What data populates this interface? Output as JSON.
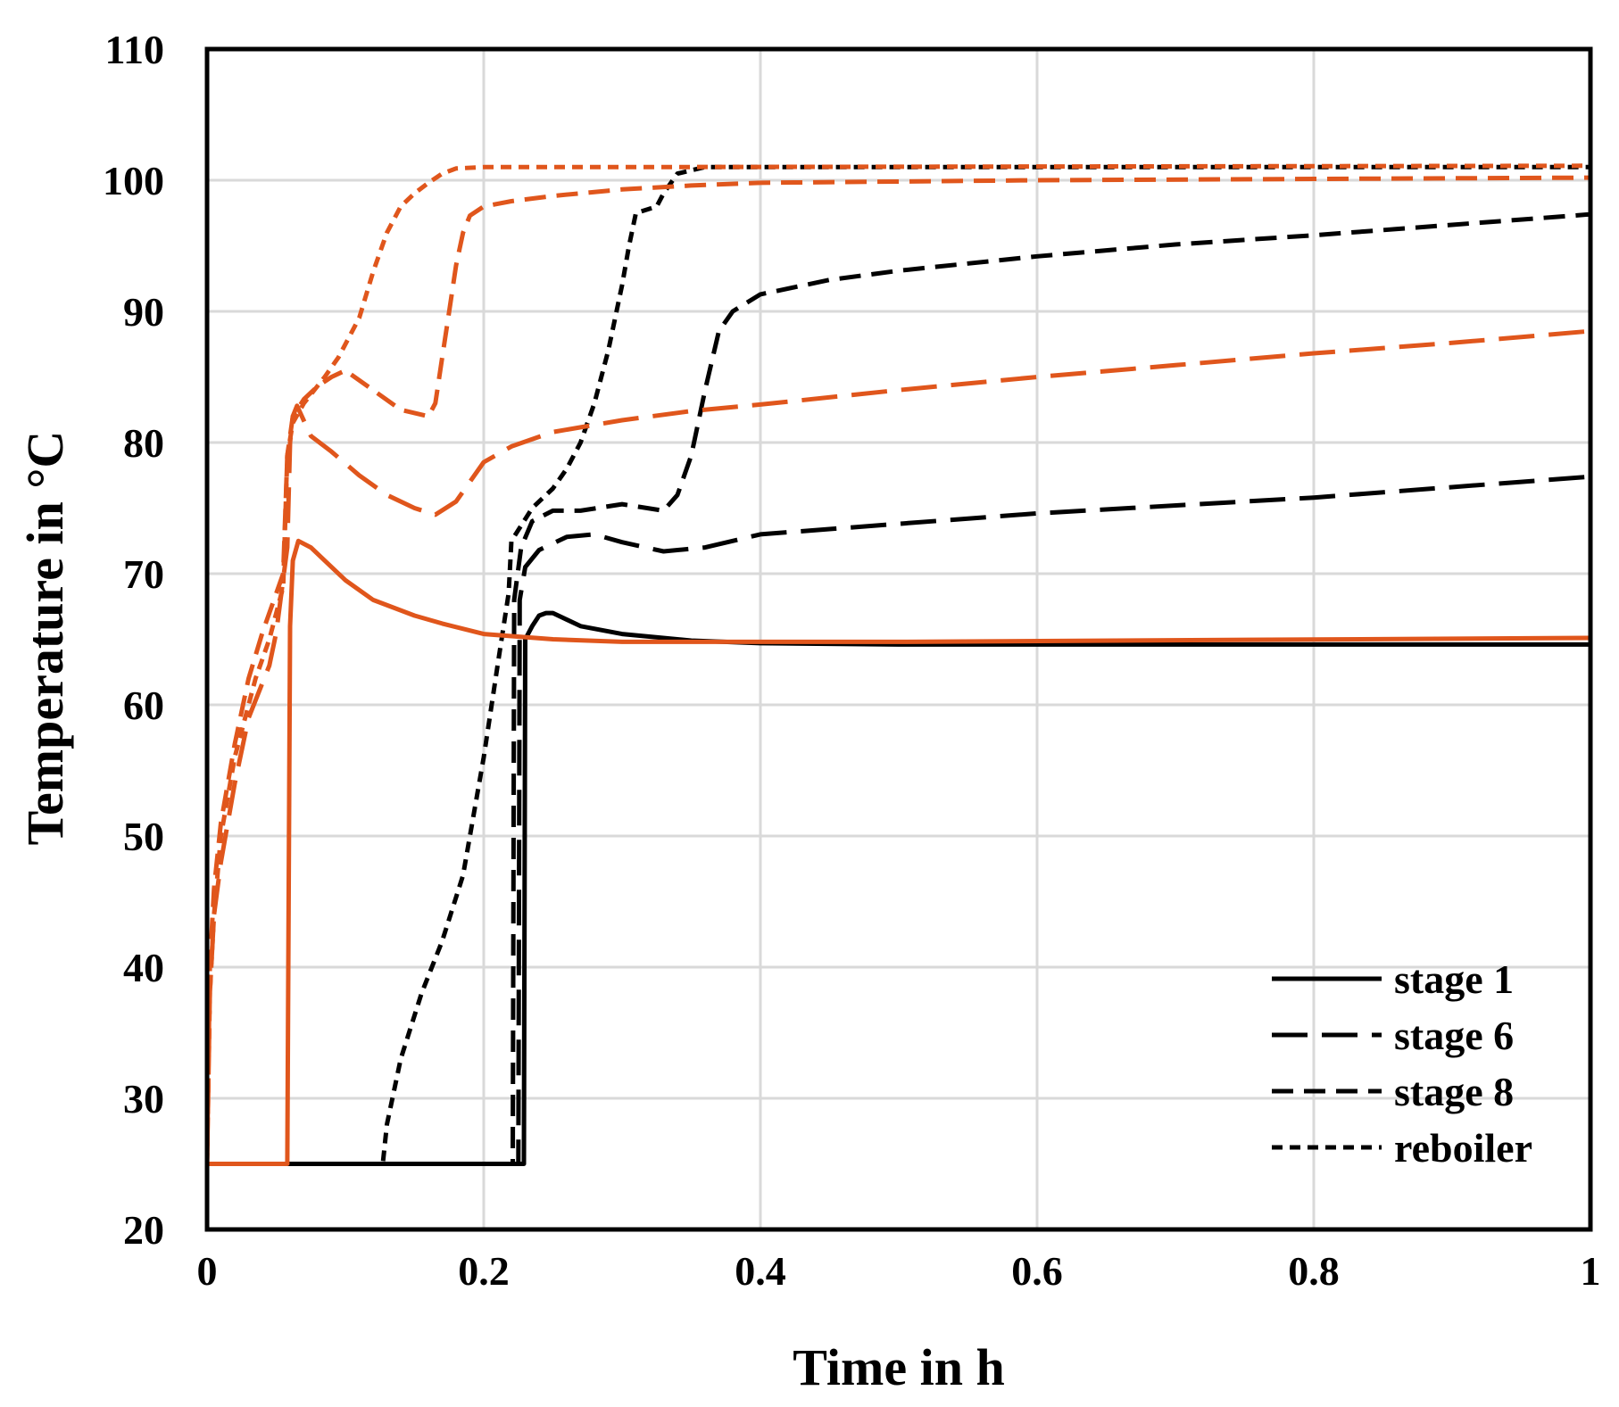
{
  "chart_data": {
    "type": "line",
    "title": "",
    "xlabel": "Time in h",
    "ylabel": "Temperature in °C",
    "xlim": [
      0,
      1
    ],
    "ylim": [
      20,
      110
    ],
    "xticks": [
      0,
      0.2,
      0.4,
      0.6,
      0.8,
      1
    ],
    "xtick_labels": [
      "0",
      "0.2",
      "0.4",
      "0.6",
      "0.8",
      "1"
    ],
    "yticks": [
      20,
      30,
      40,
      50,
      60,
      70,
      80,
      90,
      100,
      110
    ],
    "ytick_labels": [
      "20",
      "30",
      "40",
      "50",
      "60",
      "70",
      "80",
      "90",
      "100",
      "110"
    ],
    "grid": true,
    "legend_position": "bottom-right",
    "colors": {
      "black": "#000000",
      "orange": "#E0561C",
      "grid": "#d9d9d9"
    },
    "legend": [
      {
        "label": "stage 1",
        "style": "solid"
      },
      {
        "label": "stage 6",
        "style": "longdash"
      },
      {
        "label": "stage 8",
        "style": "dash"
      },
      {
        "label": "reboiler",
        "style": "dot"
      }
    ],
    "series": [
      {
        "name": "stage 1",
        "color": "black",
        "style": "solid",
        "points": [
          [
            0,
            25
          ],
          [
            0.229,
            25
          ],
          [
            0.23,
            65
          ],
          [
            0.235,
            66
          ],
          [
            0.24,
            66.8
          ],
          [
            0.245,
            67
          ],
          [
            0.25,
            67
          ],
          [
            0.27,
            66
          ],
          [
            0.3,
            65.4
          ],
          [
            0.35,
            64.9
          ],
          [
            0.4,
            64.7
          ],
          [
            0.5,
            64.6
          ],
          [
            1,
            64.6
          ]
        ]
      },
      {
        "name": "stage 6",
        "color": "black",
        "style": "longdash",
        "points": [
          [
            0,
            25
          ],
          [
            0.225,
            25
          ],
          [
            0.226,
            68
          ],
          [
            0.23,
            70.5
          ],
          [
            0.24,
            71.8
          ],
          [
            0.26,
            72.8
          ],
          [
            0.28,
            73
          ],
          [
            0.3,
            72.4
          ],
          [
            0.33,
            71.7
          ],
          [
            0.36,
            72
          ],
          [
            0.4,
            73
          ],
          [
            0.5,
            73.8
          ],
          [
            0.6,
            74.6
          ],
          [
            0.8,
            75.8
          ],
          [
            1,
            77.4
          ]
        ]
      },
      {
        "name": "stage 8",
        "color": "black",
        "style": "dash",
        "points": [
          [
            0,
            25
          ],
          [
            0.221,
            25
          ],
          [
            0.222,
            68
          ],
          [
            0.227,
            72
          ],
          [
            0.235,
            74
          ],
          [
            0.25,
            74.8
          ],
          [
            0.27,
            74.8
          ],
          [
            0.3,
            75.3
          ],
          [
            0.33,
            74.8
          ],
          [
            0.34,
            76
          ],
          [
            0.35,
            79
          ],
          [
            0.36,
            84
          ],
          [
            0.37,
            88.5
          ],
          [
            0.38,
            90
          ],
          [
            0.4,
            91.3
          ],
          [
            0.45,
            92.4
          ],
          [
            0.5,
            93.1
          ],
          [
            0.6,
            94.2
          ],
          [
            0.7,
            95.1
          ],
          [
            0.8,
            95.8
          ],
          [
            0.9,
            96.6
          ],
          [
            1,
            97.4
          ]
        ]
      },
      {
        "name": "reboiler",
        "color": "black",
        "style": "dot",
        "points": [
          [
            0,
            25
          ],
          [
            0.127,
            25
          ],
          [
            0.13,
            28
          ],
          [
            0.14,
            33
          ],
          [
            0.155,
            38
          ],
          [
            0.17,
            42
          ],
          [
            0.185,
            47
          ],
          [
            0.2,
            56
          ],
          [
            0.21,
            63
          ],
          [
            0.218,
            68.5
          ],
          [
            0.22,
            72.5
          ],
          [
            0.235,
            75
          ],
          [
            0.25,
            76.5
          ],
          [
            0.26,
            78
          ],
          [
            0.27,
            80
          ],
          [
            0.28,
            83
          ],
          [
            0.29,
            87
          ],
          [
            0.3,
            92
          ],
          [
            0.305,
            95
          ],
          [
            0.31,
            97.5
          ],
          [
            0.325,
            98
          ],
          [
            0.33,
            99
          ],
          [
            0.34,
            100.5
          ],
          [
            0.36,
            101
          ],
          [
            0.4,
            101
          ],
          [
            1,
            101
          ]
        ]
      },
      {
        "name": "stage 1 (orange)",
        "color": "orange",
        "style": "solid",
        "points": [
          [
            0,
            25
          ],
          [
            0.058,
            25
          ],
          [
            0.06,
            66
          ],
          [
            0.062,
            71
          ],
          [
            0.066,
            72.5
          ],
          [
            0.075,
            72
          ],
          [
            0.085,
            71
          ],
          [
            0.1,
            69.5
          ],
          [
            0.12,
            68
          ],
          [
            0.15,
            66.8
          ],
          [
            0.17,
            66.2
          ],
          [
            0.2,
            65.4
          ],
          [
            0.25,
            65
          ],
          [
            0.3,
            64.8
          ],
          [
            0.5,
            64.8
          ],
          [
            1,
            65.1
          ]
        ]
      },
      {
        "name": "stage 6 (orange)",
        "color": "orange",
        "style": "longdash",
        "points": [
          [
            0,
            25
          ],
          [
            0.002,
            38
          ],
          [
            0.005,
            44
          ],
          [
            0.01,
            48
          ],
          [
            0.02,
            54
          ],
          [
            0.03,
            59
          ],
          [
            0.045,
            63
          ],
          [
            0.05,
            65.5
          ],
          [
            0.058,
            72
          ],
          [
            0.06,
            80
          ],
          [
            0.062,
            82
          ],
          [
            0.065,
            82.8
          ],
          [
            0.075,
            80.5
          ],
          [
            0.09,
            79.3
          ],
          [
            0.11,
            77.5
          ],
          [
            0.13,
            76
          ],
          [
            0.15,
            75
          ],
          [
            0.165,
            74.5
          ],
          [
            0.18,
            75.5
          ],
          [
            0.2,
            78.5
          ],
          [
            0.22,
            79.7
          ],
          [
            0.25,
            80.8
          ],
          [
            0.3,
            81.7
          ],
          [
            0.35,
            82.4
          ],
          [
            0.4,
            82.9
          ],
          [
            0.5,
            84
          ],
          [
            0.6,
            85
          ],
          [
            0.7,
            85.9
          ],
          [
            0.8,
            86.8
          ],
          [
            0.9,
            87.6
          ],
          [
            1,
            88.5
          ]
        ]
      },
      {
        "name": "stage 8 (orange)",
        "color": "orange",
        "style": "dash",
        "points": [
          [
            0,
            25
          ],
          [
            0.002,
            40
          ],
          [
            0.005,
            46
          ],
          [
            0.01,
            51
          ],
          [
            0.02,
            57
          ],
          [
            0.03,
            62
          ],
          [
            0.04,
            65.5
          ],
          [
            0.05,
            68.5
          ],
          [
            0.055,
            70
          ],
          [
            0.058,
            79
          ],
          [
            0.062,
            82
          ],
          [
            0.07,
            83.3
          ],
          [
            0.08,
            84.3
          ],
          [
            0.09,
            85
          ],
          [
            0.1,
            85.5
          ],
          [
            0.12,
            84
          ],
          [
            0.14,
            82.5
          ],
          [
            0.16,
            82
          ],
          [
            0.165,
            83
          ],
          [
            0.17,
            86.5
          ],
          [
            0.175,
            90
          ],
          [
            0.18,
            93.5
          ],
          [
            0.185,
            96
          ],
          [
            0.19,
            97.3
          ],
          [
            0.2,
            98
          ],
          [
            0.22,
            98.4
          ],
          [
            0.25,
            98.8
          ],
          [
            0.3,
            99.3
          ],
          [
            0.35,
            99.6
          ],
          [
            0.4,
            99.8
          ],
          [
            0.6,
            100
          ],
          [
            1,
            100.2
          ]
        ]
      },
      {
        "name": "reboiler (orange)",
        "color": "orange",
        "style": "dot",
        "points": [
          [
            0,
            25
          ],
          [
            0.002,
            38
          ],
          [
            0.005,
            44
          ],
          [
            0.01,
            50
          ],
          [
            0.02,
            56
          ],
          [
            0.035,
            62
          ],
          [
            0.045,
            65
          ],
          [
            0.055,
            69
          ],
          [
            0.058,
            79
          ],
          [
            0.062,
            81.5
          ],
          [
            0.07,
            83
          ],
          [
            0.085,
            85
          ],
          [
            0.095,
            86.5
          ],
          [
            0.11,
            89.5
          ],
          [
            0.12,
            93
          ],
          [
            0.13,
            96
          ],
          [
            0.14,
            98
          ],
          [
            0.15,
            99
          ],
          [
            0.16,
            99.8
          ],
          [
            0.17,
            100.5
          ],
          [
            0.18,
            100.9
          ],
          [
            0.2,
            101
          ],
          [
            0.3,
            101
          ],
          [
            1,
            101.1
          ]
        ]
      }
    ]
  }
}
